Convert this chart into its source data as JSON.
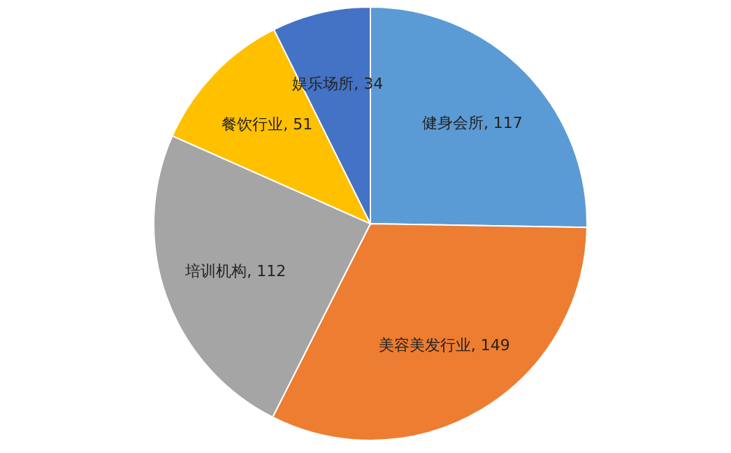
{
  "chart_data": {
    "type": "pie",
    "categories": [
      "健身会所",
      "美容美发行业",
      "培训机构",
      "餐饮行业",
      "娱乐场所"
    ],
    "values": [
      117,
      149,
      112,
      51,
      34
    ],
    "value_labels": [
      ", 117",
      ", 149",
      ", 112",
      ", 51",
      ", 34"
    ],
    "colors": [
      "#5b9bd5",
      "#ed7d31",
      "#a5a5a5",
      "#ffc000",
      "#4472c4"
    ]
  }
}
